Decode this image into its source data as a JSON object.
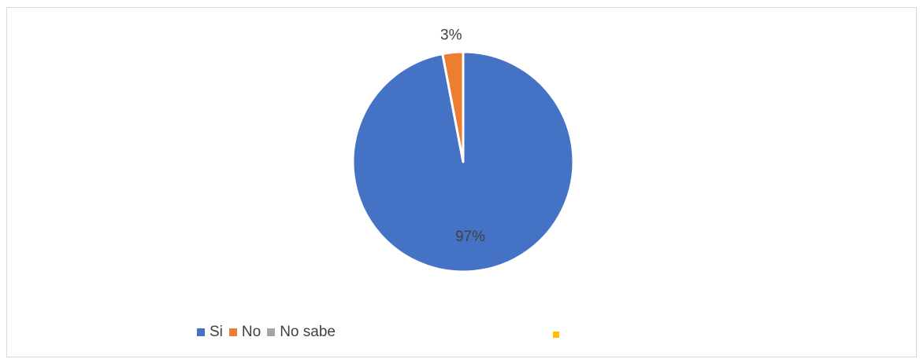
{
  "chart_data": {
    "type": "pie",
    "title": "",
    "slices": [
      {
        "label": "Si",
        "value": 97,
        "display": "97%",
        "color": "#4472c4"
      },
      {
        "label": "No",
        "value": 3,
        "display": "3%",
        "color": "#ed7d31"
      },
      {
        "label": "No sabe",
        "value": 0,
        "display": "",
        "color": "#a5a5a5"
      }
    ],
    "legend_position": "bottom-left",
    "extra_legend_marker_color": "#ffc000"
  },
  "legend": {
    "items": [
      {
        "label": "Si",
        "color": "#4472c4"
      },
      {
        "label": "No",
        "color": "#ed7d31"
      },
      {
        "label": "No sabe",
        "color": "#a5a5a5"
      }
    ]
  }
}
